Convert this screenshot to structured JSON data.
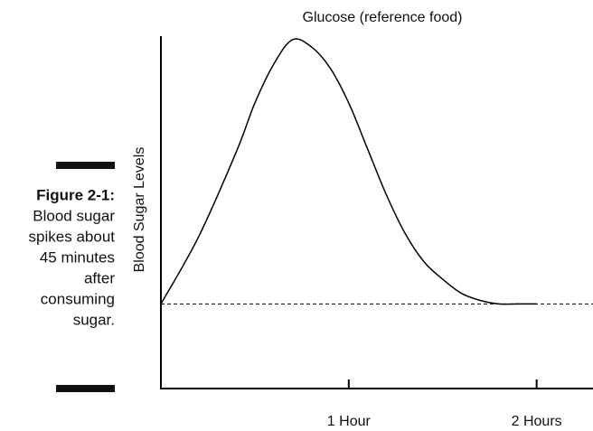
{
  "figure": {
    "label": "Figure 2-1:",
    "caption_lines": [
      "Blood sugar",
      "spikes about",
      "45 minutes",
      "after",
      "consuming",
      "sugar."
    ]
  },
  "chart_data": {
    "type": "line",
    "title": "Glucose (reference food)",
    "y_label": "Blood Sugar Levels",
    "x": [
      0,
      0.2,
      0.4,
      0.5,
      0.6,
      0.7,
      0.8,
      0.9,
      1.0,
      1.1,
      1.2,
      1.3,
      1.4,
      1.5,
      1.6,
      1.7,
      1.8,
      1.9,
      2.0
    ],
    "series": [
      {
        "name": "Glucose",
        "color": "#000000",
        "values": [
          24,
          43,
          67,
          81,
          92,
          99,
          97,
          91,
          81,
          68,
          55,
          44,
          36,
          31,
          27,
          25,
          24,
          24,
          24
        ]
      }
    ],
    "reference_line": 24,
    "xlim": [
      0,
      2.3
    ],
    "ylim": [
      0,
      100
    ],
    "xticks": [
      {
        "value": 1,
        "label": "1 Hour"
      },
      {
        "value": 2,
        "label": "2 Hours"
      }
    ]
  }
}
